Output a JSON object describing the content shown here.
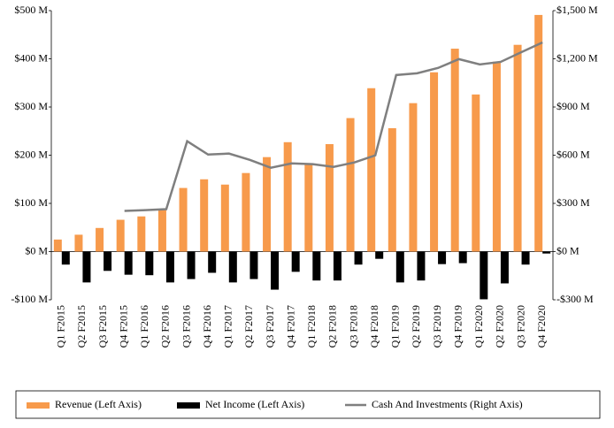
{
  "chart_data": {
    "type": "bar-line",
    "categories": [
      "Q1 F2015",
      "Q2 F2015",
      "Q3 F2015",
      "Q4 F2015",
      "Q1 F2016",
      "Q2 F2016",
      "Q3 F2016",
      "Q4 F2016",
      "Q1 F2017",
      "Q2 F2017",
      "Q3 F2017",
      "Q4 F2017",
      "Q1 F2018",
      "Q2 F2018",
      "Q3 F2018",
      "Q4 F2018",
      "Q1 F2019",
      "Q2 F2019",
      "Q3 F2019",
      "Q4 F2019",
      "Q1 F2020",
      "Q2 F2020",
      "Q3 F2020",
      "Q4 F2020"
    ],
    "series": [
      {
        "name": "Revenue (Left Axis)",
        "color": "#f79a4b",
        "type": "bar",
        "axis": "y",
        "values": [
          25,
          35,
          49,
          66,
          73,
          86,
          132,
          150,
          139,
          163,
          196,
          227,
          181,
          223,
          277,
          339,
          256,
          308,
          372,
          421,
          326,
          394,
          429,
          491
        ]
      },
      {
        "name": "Net Income (Left Axis)",
        "color": "#000000",
        "type": "bar",
        "axis": "y",
        "values": [
          -27,
          -64,
          -40,
          -48,
          -49,
          -64,
          -57,
          -44,
          -64,
          -57,
          -79,
          -42,
          -60,
          -60,
          -27,
          -15,
          -64,
          -60,
          -26,
          -24,
          -99,
          -66,
          -27,
          -4
        ]
      },
      {
        "name": "Cash And Investments (Right Axis)",
        "color": "#7f7f7f",
        "type": "line",
        "axis": "y2",
        "values": [
          null,
          null,
          null,
          253,
          258,
          264,
          687,
          604,
          610,
          571,
          522,
          549,
          544,
          527,
          555,
          599,
          1099,
          1110,
          1143,
          1198,
          1165,
          1181,
          1242,
          1302
        ]
      }
    ],
    "ylim": [
      -100,
      500
    ],
    "yticks": [
      {
        "value": -100,
        "label": "-$100 M"
      },
      {
        "value": 0,
        "label": "$0 M"
      },
      {
        "value": 100,
        "label": "$100 M"
      },
      {
        "value": 200,
        "label": "$200 M"
      },
      {
        "value": 300,
        "label": "$300 M"
      },
      {
        "value": 400,
        "label": "$400 M"
      },
      {
        "value": 500,
        "label": "$500 M"
      }
    ],
    "y2lim": [
      -300,
      1500
    ],
    "y2ticks": [
      {
        "value": -300,
        "label": "-$300 M"
      },
      {
        "value": 0,
        "label": "$0 M"
      },
      {
        "value": 300,
        "label": "$300 M"
      },
      {
        "value": 600,
        "label": "$600 M"
      },
      {
        "value": 900,
        "label": "$900 M"
      },
      {
        "value": 1200,
        "label": "$1,200 M"
      },
      {
        "value": 1500,
        "label": "$1,500 M"
      }
    ],
    "legend": "bottom"
  }
}
